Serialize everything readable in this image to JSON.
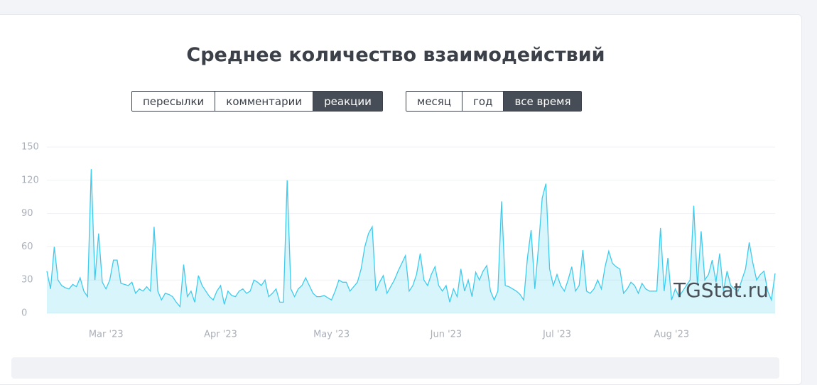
{
  "metric_tabs": [
    "пересылки",
    "комментарии",
    "реакции"
  ],
  "period_tabs": [
    "месяц",
    "год",
    "все время"
  ],
  "watermark": "TGStat.ru",
  "chart_data": {
    "type": "area",
    "title": "Среднее количество взаимодействий",
    "color": "#3ecbed",
    "grid": true,
    "ylim": [
      0,
      150
    ],
    "yticks": [
      0,
      30,
      60,
      90,
      120,
      150
    ],
    "categories": [
      null,
      null,
      null,
      null,
      null,
      null,
      null,
      null,
      null,
      null,
      null,
      null,
      null,
      null,
      null,
      null,
      "Mar '23",
      null,
      null,
      null,
      null,
      null,
      null,
      null,
      null,
      null,
      null,
      null,
      null,
      null,
      null,
      null,
      null,
      null,
      null,
      null,
      null,
      null,
      null,
      null,
      null,
      null,
      null,
      null,
      null,
      null,
      null,
      "Apr '23",
      null,
      null,
      null,
      null,
      null,
      null,
      null,
      null,
      null,
      null,
      null,
      null,
      null,
      null,
      null,
      null,
      null,
      null,
      null,
      null,
      null,
      null,
      null,
      null,
      null,
      null,
      null,
      null,
      null,
      "May '23",
      null,
      null,
      null,
      null,
      null,
      null,
      null,
      null,
      null,
      null,
      null,
      null,
      null,
      null,
      null,
      null,
      null,
      null,
      null,
      null,
      null,
      null,
      null,
      null,
      null,
      null,
      null,
      null,
      null,
      null,
      "Jun '23",
      null,
      null,
      null,
      null,
      null,
      null,
      null,
      null,
      null,
      null,
      null,
      null,
      null,
      null,
      null,
      null,
      null,
      null,
      null,
      null,
      null,
      null,
      null,
      null,
      null,
      null,
      null,
      null,
      null,
      "Jul '23",
      null,
      null,
      null,
      null,
      null,
      null,
      null,
      null,
      null,
      null,
      null,
      null,
      null,
      null,
      null,
      null,
      null,
      null,
      null,
      null,
      null,
      null,
      null,
      null,
      null,
      null,
      null,
      null,
      null,
      null,
      "Aug '23",
      null,
      null,
      null,
      null,
      null,
      null,
      null,
      null,
      null,
      null,
      null,
      null,
      null,
      null,
      null,
      null,
      null,
      null,
      null,
      null,
      null,
      null,
      null,
      null,
      null,
      null,
      null,
      null
    ],
    "values": [
      38,
      22,
      60,
      30,
      25,
      23,
      22,
      26,
      24,
      32,
      20,
      15,
      130,
      30,
      72,
      28,
      22,
      30,
      48,
      48,
      27,
      26,
      25,
      28,
      18,
      22,
      20,
      24,
      20,
      78,
      20,
      12,
      18,
      17,
      15,
      10,
      6,
      44,
      15,
      20,
      10,
      34,
      25,
      20,
      15,
      12,
      20,
      25,
      8,
      20,
      16,
      15,
      20,
      22,
      18,
      20,
      30,
      28,
      25,
      30,
      15,
      18,
      22,
      10,
      10,
      120,
      22,
      15,
      22,
      25,
      32,
      25,
      18,
      15,
      15,
      16,
      14,
      12,
      20,
      30,
      28,
      28,
      20,
      24,
      28,
      40,
      60,
      72,
      78,
      20,
      28,
      34,
      18,
      24,
      30,
      38,
      45,
      52,
      20,
      25,
      35,
      54,
      30,
      25,
      35,
      42,
      25,
      20,
      25,
      10,
      22,
      15,
      40,
      20,
      30,
      15,
      37,
      30,
      38,
      43,
      20,
      12,
      20,
      101,
      25,
      24,
      22,
      20,
      17,
      12,
      50,
      75,
      22,
      60,
      104,
      117,
      40,
      25,
      35,
      25,
      20,
      30,
      42,
      20,
      25,
      57,
      20,
      18,
      22,
      30,
      22,
      42,
      56,
      45,
      42,
      40,
      18,
      22,
      28,
      25,
      18,
      27,
      22,
      20,
      20,
      20,
      77,
      20,
      50,
      12,
      22,
      15,
      20,
      25,
      30,
      97,
      25,
      74,
      30,
      35,
      48,
      28,
      54,
      20,
      38,
      25,
      22,
      20,
      30,
      40,
      64,
      45,
      30,
      35,
      38,
      20,
      12,
      36
    ]
  }
}
